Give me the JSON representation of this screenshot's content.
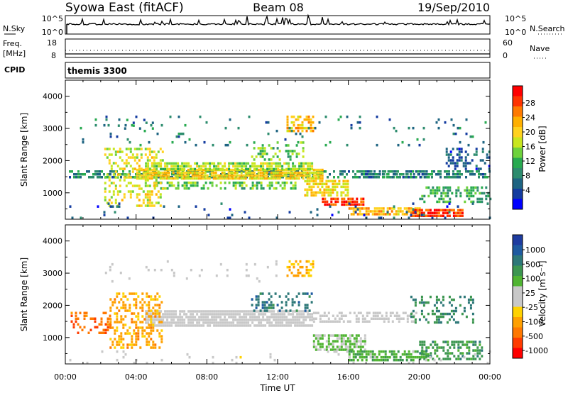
{
  "header": {
    "title": "Syowa East (fitACF)",
    "beam": "Beam 08",
    "date": "19/Sep/2010"
  },
  "strips": {
    "nsky_label": "N.Sky",
    "nsky_ticks": [
      "10^5",
      "10^0"
    ],
    "nsearch_label": "N.Search",
    "freq_label": "Freq.",
    "freq_unit": "[MHz]",
    "freq_ticks": [
      "18",
      "8"
    ],
    "nave_label": "Nave",
    "nave_ticks": [
      "60",
      "0"
    ],
    "cpid_label": "CPID",
    "cpid_value": "themis 3300"
  },
  "panels": {
    "ylabel": "Slant Range [km]",
    "yticks": [
      "4000",
      "3000",
      "2000",
      "1000"
    ],
    "xticks": [
      "00:00",
      "04:00",
      "08:00",
      "12:00",
      "16:00",
      "20:00",
      "00:00"
    ],
    "xlabel": "Time UT"
  },
  "colorbars": {
    "power": {
      "label": "Power [dB]",
      "ticks": [
        "28",
        "24",
        "20",
        "16",
        "12",
        "8",
        "4"
      ],
      "colors": [
        "#ff0000",
        "#ff3300",
        "#ff7a00",
        "#ffb000",
        "#ffd21e",
        "#c8e61e",
        "#6ed23c",
        "#28aa50",
        "#2d8c6e",
        "#1e6482",
        "#143ca0",
        "#0000ff"
      ]
    },
    "velocity": {
      "label": "Velocity [m s⁻¹]",
      "ticks": [
        "1000",
        "500",
        "100",
        "25",
        "-25",
        "-100",
        "-500",
        "-1000"
      ],
      "colors": [
        "#1e3ca0",
        "#1e5aa0",
        "#2d7878",
        "#3c9650",
        "#50b432",
        "#c8c8c8",
        "#c8c8c8",
        "#ffd200",
        "#ffa000",
        "#ff7800",
        "#ff3c00",
        "#ff0000"
      ]
    }
  },
  "chart_data": [
    {
      "type": "heatmap",
      "title": "Power",
      "xlabel": "Time UT",
      "ylabel": "Slant Range [km]",
      "xlim": [
        "00:00",
        "24:00"
      ],
      "ylim": [
        180,
        4500
      ],
      "colorbar": {
        "label": "Power [dB]",
        "range": [
          0,
          32
        ]
      },
      "regions": [
        {
          "t": [
            0.2,
            24.0
          ],
          "r": [
            1450,
            1700
          ],
          "v": 9,
          "d": 0.55
        },
        {
          "t": [
            4.0,
            14.5
          ],
          "r": [
            1450,
            1750
          ],
          "v": 20,
          "d": 0.9
        },
        {
          "t": [
            4.5,
            14.0
          ],
          "r": [
            1750,
            1950
          ],
          "v": 16,
          "d": 0.75
        },
        {
          "t": [
            5.0,
            13.0
          ],
          "r": [
            1150,
            1350
          ],
          "v": 14,
          "d": 0.55
        },
        {
          "t": [
            2.2,
            5.5
          ],
          "r": [
            600,
            2400
          ],
          "v": 18,
          "d": 0.35
        },
        {
          "t": [
            10.5,
            13.5
          ],
          "r": [
            2000,
            2600
          ],
          "v": 14,
          "d": 0.3
        },
        {
          "t": [
            12.5,
            14.0
          ],
          "r": [
            2900,
            3400
          ],
          "v": 22,
          "d": 0.55
        },
        {
          "t": [
            2.0,
            5.0
          ],
          "r": [
            3000,
            3300
          ],
          "v": 8,
          "d": 0.12
        },
        {
          "t": [
            0.1,
            24.0
          ],
          "r": [
            2500,
            3400
          ],
          "v": 8,
          "d": 0.05
        },
        {
          "t": [
            13.5,
            16.0
          ],
          "r": [
            900,
            1400
          ],
          "v": 20,
          "d": 0.7
        },
        {
          "t": [
            14.5,
            16.8
          ],
          "r": [
            600,
            850
          ],
          "v": 28,
          "d": 0.8
        },
        {
          "t": [
            16.0,
            20.0
          ],
          "r": [
            350,
            550
          ],
          "v": 22,
          "d": 0.8
        },
        {
          "t": [
            19.5,
            22.5
          ],
          "r": [
            250,
            500
          ],
          "v": 28,
          "d": 0.8
        },
        {
          "t": [
            20.0,
            24.0
          ],
          "r": [
            700,
            1200
          ],
          "v": 12,
          "d": 0.5
        },
        {
          "t": [
            17.0,
            20.5
          ],
          "r": [
            1500,
            1700
          ],
          "v": 8,
          "d": 0.6
        },
        {
          "t": [
            21.5,
            24.0
          ],
          "r": [
            1700,
            2400
          ],
          "v": 6,
          "d": 0.35
        },
        {
          "t": [
            0.1,
            24.0
          ],
          "r": [
            200,
            700
          ],
          "v": 6,
          "d": 0.05
        }
      ]
    },
    {
      "type": "heatmap",
      "title": "Velocity",
      "xlabel": "Time UT",
      "ylabel": "Slant Range [km]",
      "xlim": [
        "00:00",
        "24:00"
      ],
      "ylim": [
        180,
        4500
      ],
      "colorbar": {
        "label": "Velocity [m s⁻¹]",
        "range": [
          -1000,
          1000
        ]
      },
      "regions": [
        {
          "t": [
            4.5,
            14.0
          ],
          "r": [
            1400,
            1850
          ],
          "v": 0,
          "d": 0.85
        },
        {
          "t": [
            14.0,
            20.0
          ],
          "r": [
            1450,
            1800
          ],
          "v": 0,
          "d": 0.5
        },
        {
          "t": [
            0.3,
            2.5
          ],
          "r": [
            1100,
            1800
          ],
          "v": -600,
          "d": 0.35
        },
        {
          "t": [
            2.5,
            5.5
          ],
          "r": [
            700,
            2400
          ],
          "v": -400,
          "d": 0.4
        },
        {
          "t": [
            10.5,
            14.0
          ],
          "r": [
            1850,
            2400
          ],
          "v": 600,
          "d": 0.3
        },
        {
          "t": [
            12.5,
            14.0
          ],
          "r": [
            2900,
            3400
          ],
          "v": -350,
          "d": 0.4
        },
        {
          "t": [
            14.0,
            17.0
          ],
          "r": [
            600,
            1100
          ],
          "v": 200,
          "d": 0.65
        },
        {
          "t": [
            16.0,
            20.5
          ],
          "r": [
            300,
            600
          ],
          "v": 300,
          "d": 0.7
        },
        {
          "t": [
            20.0,
            23.5
          ],
          "r": [
            300,
            900
          ],
          "v": 400,
          "d": 0.5
        },
        {
          "t": [
            19.5,
            23.0
          ],
          "r": [
            1500,
            2300
          ],
          "v": 500,
          "d": 0.3
        },
        {
          "t": [
            2.0,
            12.0
          ],
          "r": [
            2700,
            3400
          ],
          "v": 0,
          "d": 0.06
        },
        {
          "t": [
            0.1,
            24.0
          ],
          "r": [
            200,
            600
          ],
          "v": -50,
          "d": 0.05
        }
      ]
    }
  ]
}
